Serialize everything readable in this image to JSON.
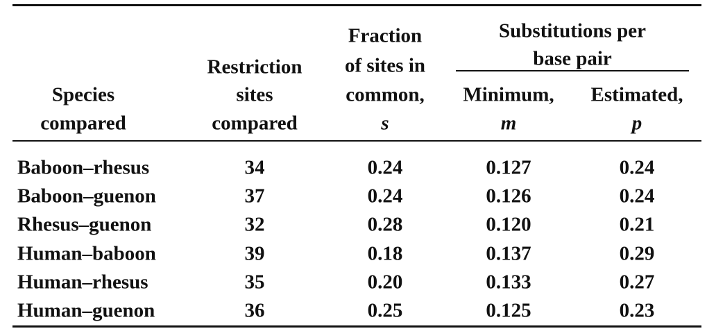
{
  "table": {
    "header": {
      "species": [
        "Species",
        "compared"
      ],
      "restriction": [
        "Restriction",
        "sites",
        "compared"
      ],
      "fraction": {
        "lines": [
          "Fraction",
          "of sites in",
          "common,"
        ],
        "variable": "s"
      },
      "substitutions": [
        "Substitutions per",
        "base pair"
      ],
      "minimum": {
        "label": "Minimum,",
        "variable": "m"
      },
      "estimated": {
        "label": "Estimated,",
        "variable": "p"
      }
    },
    "rows": [
      [
        "Baboon–rhesus",
        "34",
        "0.24",
        "0.127",
        "0.24"
      ],
      [
        "Baboon–guenon",
        "37",
        "0.24",
        "0.126",
        "0.24"
      ],
      [
        "Rhesus–guenon",
        "32",
        "0.28",
        "0.120",
        "0.21"
      ],
      [
        "Human–baboon",
        "39",
        "0.18",
        "0.137",
        "0.29"
      ],
      [
        "Human–rhesus",
        "35",
        "0.20",
        "0.133",
        "0.27"
      ],
      [
        "Human–guenon",
        "36",
        "0.25",
        "0.125",
        "0.23"
      ]
    ]
  }
}
